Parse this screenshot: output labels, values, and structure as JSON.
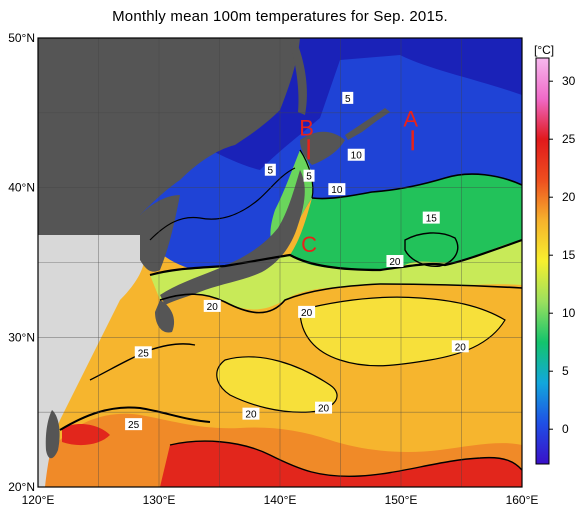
{
  "title": "Monthly mean 100m temperatures for Sep. 2015.",
  "map": {
    "lon_range": [
      120,
      160
    ],
    "lat_range": [
      20,
      50
    ],
    "lon_ticks": [
      "120°E",
      "130°E",
      "140°E",
      "150°E",
      "160°E"
    ],
    "lat_ticks": [
      "50°N",
      "40°N",
      "30°N",
      "20°N"
    ],
    "grid": "5 degree",
    "land_color": "#555555",
    "nodata_color": "#d8d8d8"
  },
  "colorbar": {
    "unit": "[°C]",
    "ticks": [
      "30",
      "25",
      "20",
      "15",
      "10",
      "5",
      "0"
    ],
    "range": [
      -3,
      32
    ],
    "colors": [
      "#3a10c8",
      "#1f4fe6",
      "#12a7dc",
      "#13c46c",
      "#9be05e",
      "#f7ef2e",
      "#f6b22c",
      "#ee4e1f",
      "#e0191c",
      "#f06ac8",
      "#f6b8ee"
    ]
  },
  "contour_labels": [
    {
      "text": "5",
      "lon": 145.6,
      "lat": 46.0
    },
    {
      "text": "5",
      "lon": 139.2,
      "lat": 41.2
    },
    {
      "text": "5",
      "lon": 142.4,
      "lat": 40.8
    },
    {
      "text": "10",
      "lon": 144.7,
      "lat": 39.9
    },
    {
      "text": "10",
      "lon": 146.3,
      "lat": 42.2
    },
    {
      "text": "15",
      "lon": 152.5,
      "lat": 38.0
    },
    {
      "text": "20",
      "lon": 149.5,
      "lat": 35.1
    },
    {
      "text": "20",
      "lon": 134.4,
      "lat": 32.1
    },
    {
      "text": "20",
      "lon": 142.2,
      "lat": 31.7
    },
    {
      "text": "20",
      "lon": 154.9,
      "lat": 29.4
    },
    {
      "text": "20",
      "lon": 137.6,
      "lat": 24.9
    },
    {
      "text": "20",
      "lon": 143.6,
      "lat": 25.3
    },
    {
      "text": "25",
      "lon": 128.7,
      "lat": 29.0
    },
    {
      "text": "25",
      "lon": 127.9,
      "lat": 24.2
    }
  ],
  "markers": [
    {
      "text": "A",
      "lon": 150.8,
      "lat": 44.1
    },
    {
      "text": "B",
      "lon": 142.2,
      "lat": 43.5
    },
    {
      "text": "C",
      "lon": 142.4,
      "lat": 35.7
    }
  ]
}
